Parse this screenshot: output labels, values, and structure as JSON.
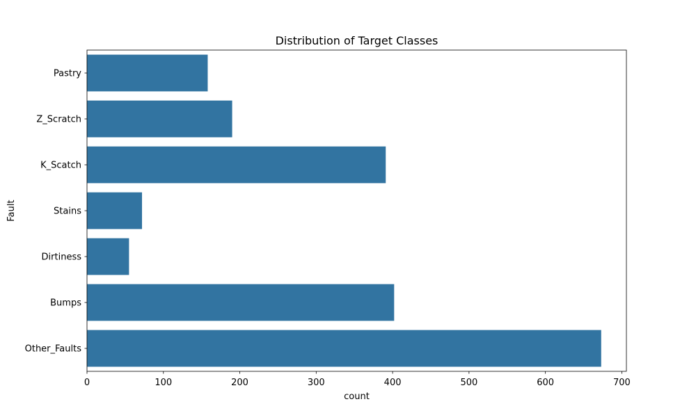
{
  "chart_data": {
    "type": "bar",
    "orientation": "horizontal",
    "title": "Distribution of Target Classes",
    "xlabel": "count",
    "ylabel": "Fault",
    "categories": [
      "Pastry",
      "Z_Scratch",
      "K_Scatch",
      "Stains",
      "Dirtiness",
      "Bumps",
      "Other_Faults"
    ],
    "values": [
      158,
      190,
      391,
      72,
      55,
      402,
      673
    ],
    "xlim": [
      0,
      706
    ],
    "xticks": [
      0,
      100,
      200,
      300,
      400,
      500,
      600,
      700
    ],
    "grid": false,
    "legend": "none",
    "bar_color": "#3274a1"
  }
}
